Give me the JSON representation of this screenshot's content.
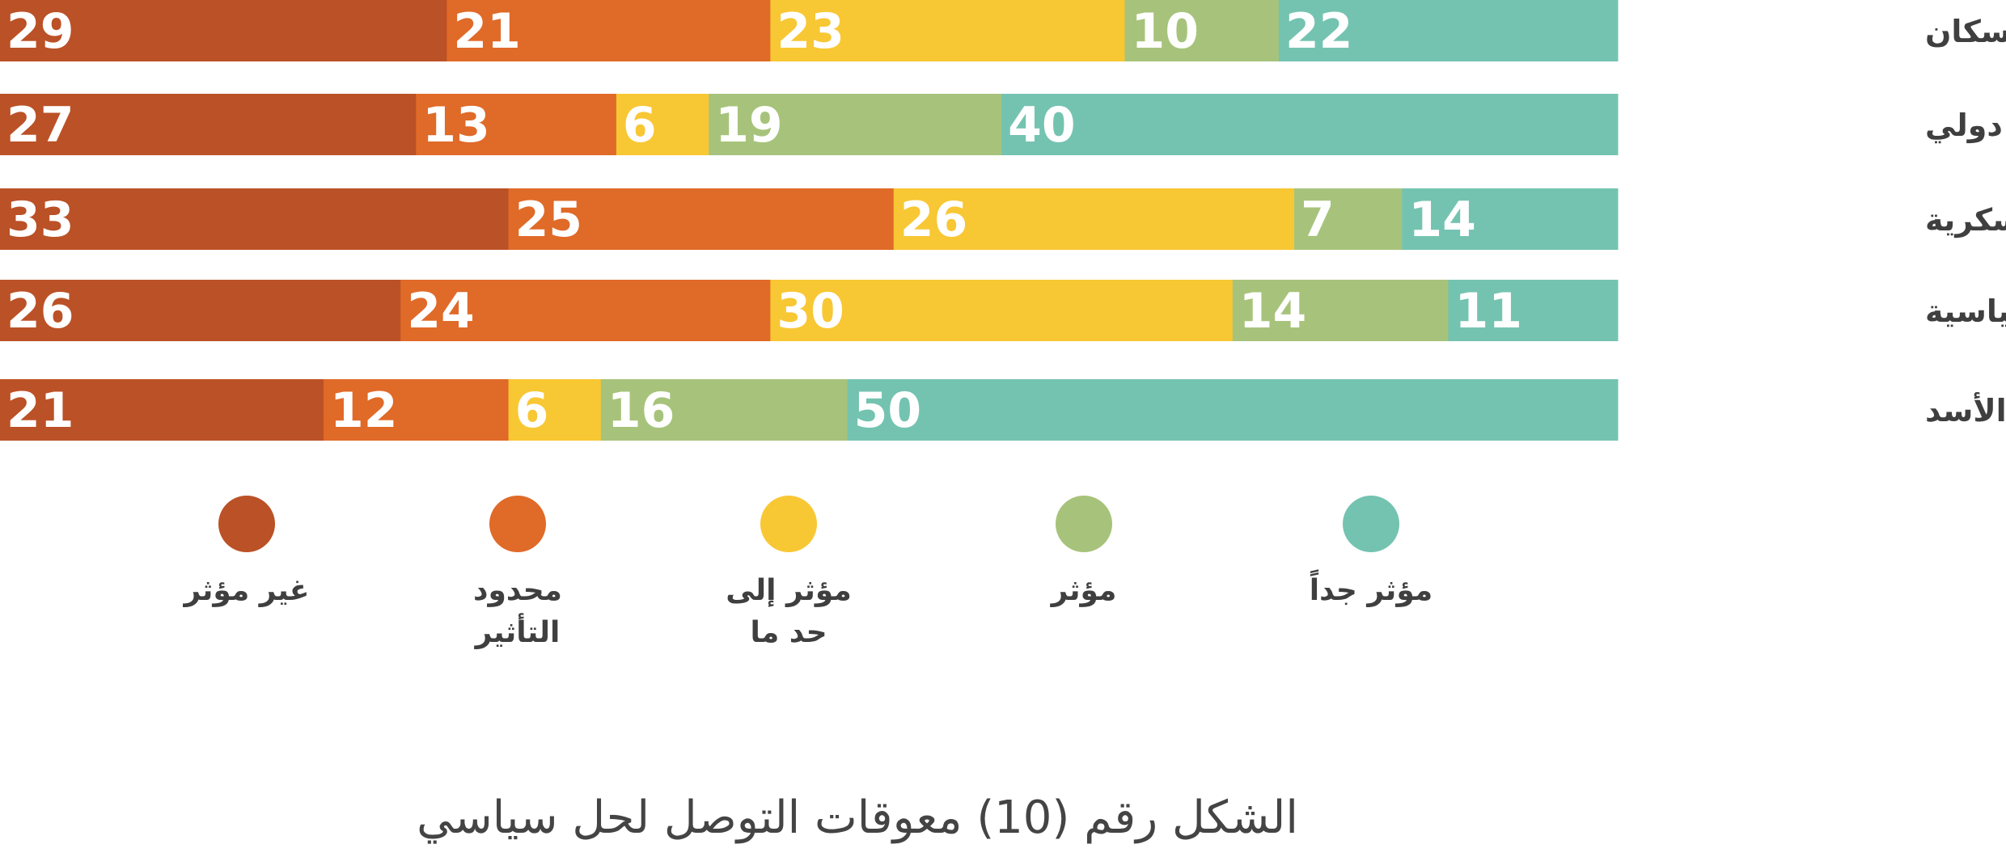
{
  "chart_data": {
    "type": "bar",
    "orientation": "horizontal",
    "stacked": true,
    "title": "الشكل رقم (10) معوقات التوصل لحل سياسي",
    "categories": [
      "غياب جهة تمثل السكان",
      "غياب إجماع دولي",
      "الفصائل العسكرية",
      "المعارضة السياسية",
      "عقدة الأسد"
    ],
    "series": [
      {
        "name": "غير مؤثر",
        "color": "#bb5126",
        "values": [
          29,
          27,
          33,
          26,
          21
        ]
      },
      {
        "name": "محدود التأثير",
        "color": "#e06a28",
        "values": [
          21,
          13,
          25,
          24,
          12
        ]
      },
      {
        "name": "مؤثر إلى حد ما",
        "color": "#f8c734",
        "values": [
          23,
          6,
          26,
          30,
          6
        ]
      },
      {
        "name": "مؤثر",
        "color": "#a7c37b",
        "values": [
          10,
          19,
          7,
          14,
          16
        ]
      },
      {
        "name": "مؤثر جداً",
        "color": "#74c3b1",
        "values": [
          22,
          40,
          14,
          11,
          50
        ]
      }
    ],
    "legend": {
      "placement": "bottom",
      "items": [
        {
          "series": 0,
          "lines": [
            "غير مؤثر"
          ]
        },
        {
          "series": 1,
          "lines": [
            "محدود",
            "التأثير"
          ]
        },
        {
          "series": 2,
          "lines": [
            "مؤثر إلى",
            "حد ما"
          ]
        },
        {
          "series": 3,
          "lines": [
            "مؤثر"
          ]
        },
        {
          "series": 4,
          "lines": [
            "مؤثر جداً"
          ]
        }
      ]
    },
    "data_labels": true,
    "grid": false
  }
}
